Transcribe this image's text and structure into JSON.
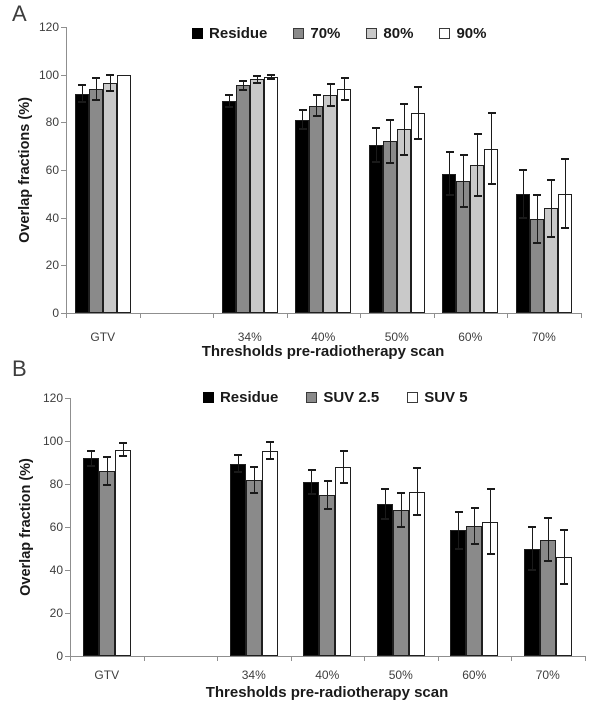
{
  "figure": {
    "background": "#ffffff"
  },
  "chart_data": [
    {
      "type": "bar",
      "panel_label": "A",
      "title": "",
      "xlabel": "Thresholds pre-radiotherapy scan",
      "ylabel": "Overlap fractions (%)",
      "categories": [
        "GTV",
        "34%",
        "40%",
        "50%",
        "60%",
        "70%"
      ],
      "ylim": [
        0,
        120
      ],
      "yticks": [
        0,
        20,
        40,
        60,
        80,
        100,
        120
      ],
      "grid": false,
      "legend_position": "top-center",
      "error_bars": true,
      "series": [
        {
          "name": "Residue",
          "color": "#000000",
          "values": [
            92,
            89,
            81,
            70.5,
            58.5,
            50
          ],
          "errors": [
            3.5,
            2.5,
            4,
            7,
            9,
            10
          ]
        },
        {
          "name": "70%",
          "color": "#8a8a8a",
          "values": [
            94,
            95.5,
            87,
            72,
            55.5,
            39.5
          ],
          "errors": [
            4.5,
            2,
            4.5,
            9,
            11,
            10
          ]
        },
        {
          "name": "80%",
          "color": "#c9c9c9",
          "values": [
            96.5,
            98,
            91.5,
            77,
            62,
            44
          ],
          "errors": [
            3.5,
            1.5,
            4.5,
            10.5,
            13,
            12
          ]
        },
        {
          "name": "90%",
          "color": "#ffffff",
          "values": [
            100,
            99,
            94,
            84,
            69,
            50
          ],
          "errors": [
            0,
            1,
            4.5,
            11,
            15,
            14.5
          ]
        }
      ]
    },
    {
      "type": "bar",
      "panel_label": "B",
      "title": "",
      "xlabel": "Thresholds pre-radiotherapy scan",
      "ylabel": "Overlap fraction (%)",
      "categories": [
        "GTV",
        "34%",
        "40%",
        "50%",
        "60%",
        "70%"
      ],
      "ylim": [
        0,
        120
      ],
      "yticks": [
        0,
        20,
        40,
        60,
        80,
        100,
        120
      ],
      "grid": false,
      "legend_position": "top-center",
      "error_bars": true,
      "series": [
        {
          "name": "Residue",
          "color": "#000000",
          "values": [
            92,
            89.5,
            81,
            70.5,
            58.5,
            50
          ],
          "errors": [
            3.5,
            4,
            5.5,
            7,
            8.5,
            10
          ]
        },
        {
          "name": "SUV 2.5",
          "color": "#8a8a8a",
          "values": [
            86,
            82,
            75,
            68,
            60.5,
            54
          ],
          "errors": [
            6.5,
            6,
            6.5,
            8,
            8.5,
            10
          ]
        },
        {
          "name": "SUV 5",
          "color": "#ffffff",
          "values": [
            96,
            95.5,
            88,
            76.5,
            62.5,
            46
          ],
          "errors": [
            3,
            4,
            7.5,
            11,
            15,
            12.5
          ]
        }
      ]
    }
  ]
}
